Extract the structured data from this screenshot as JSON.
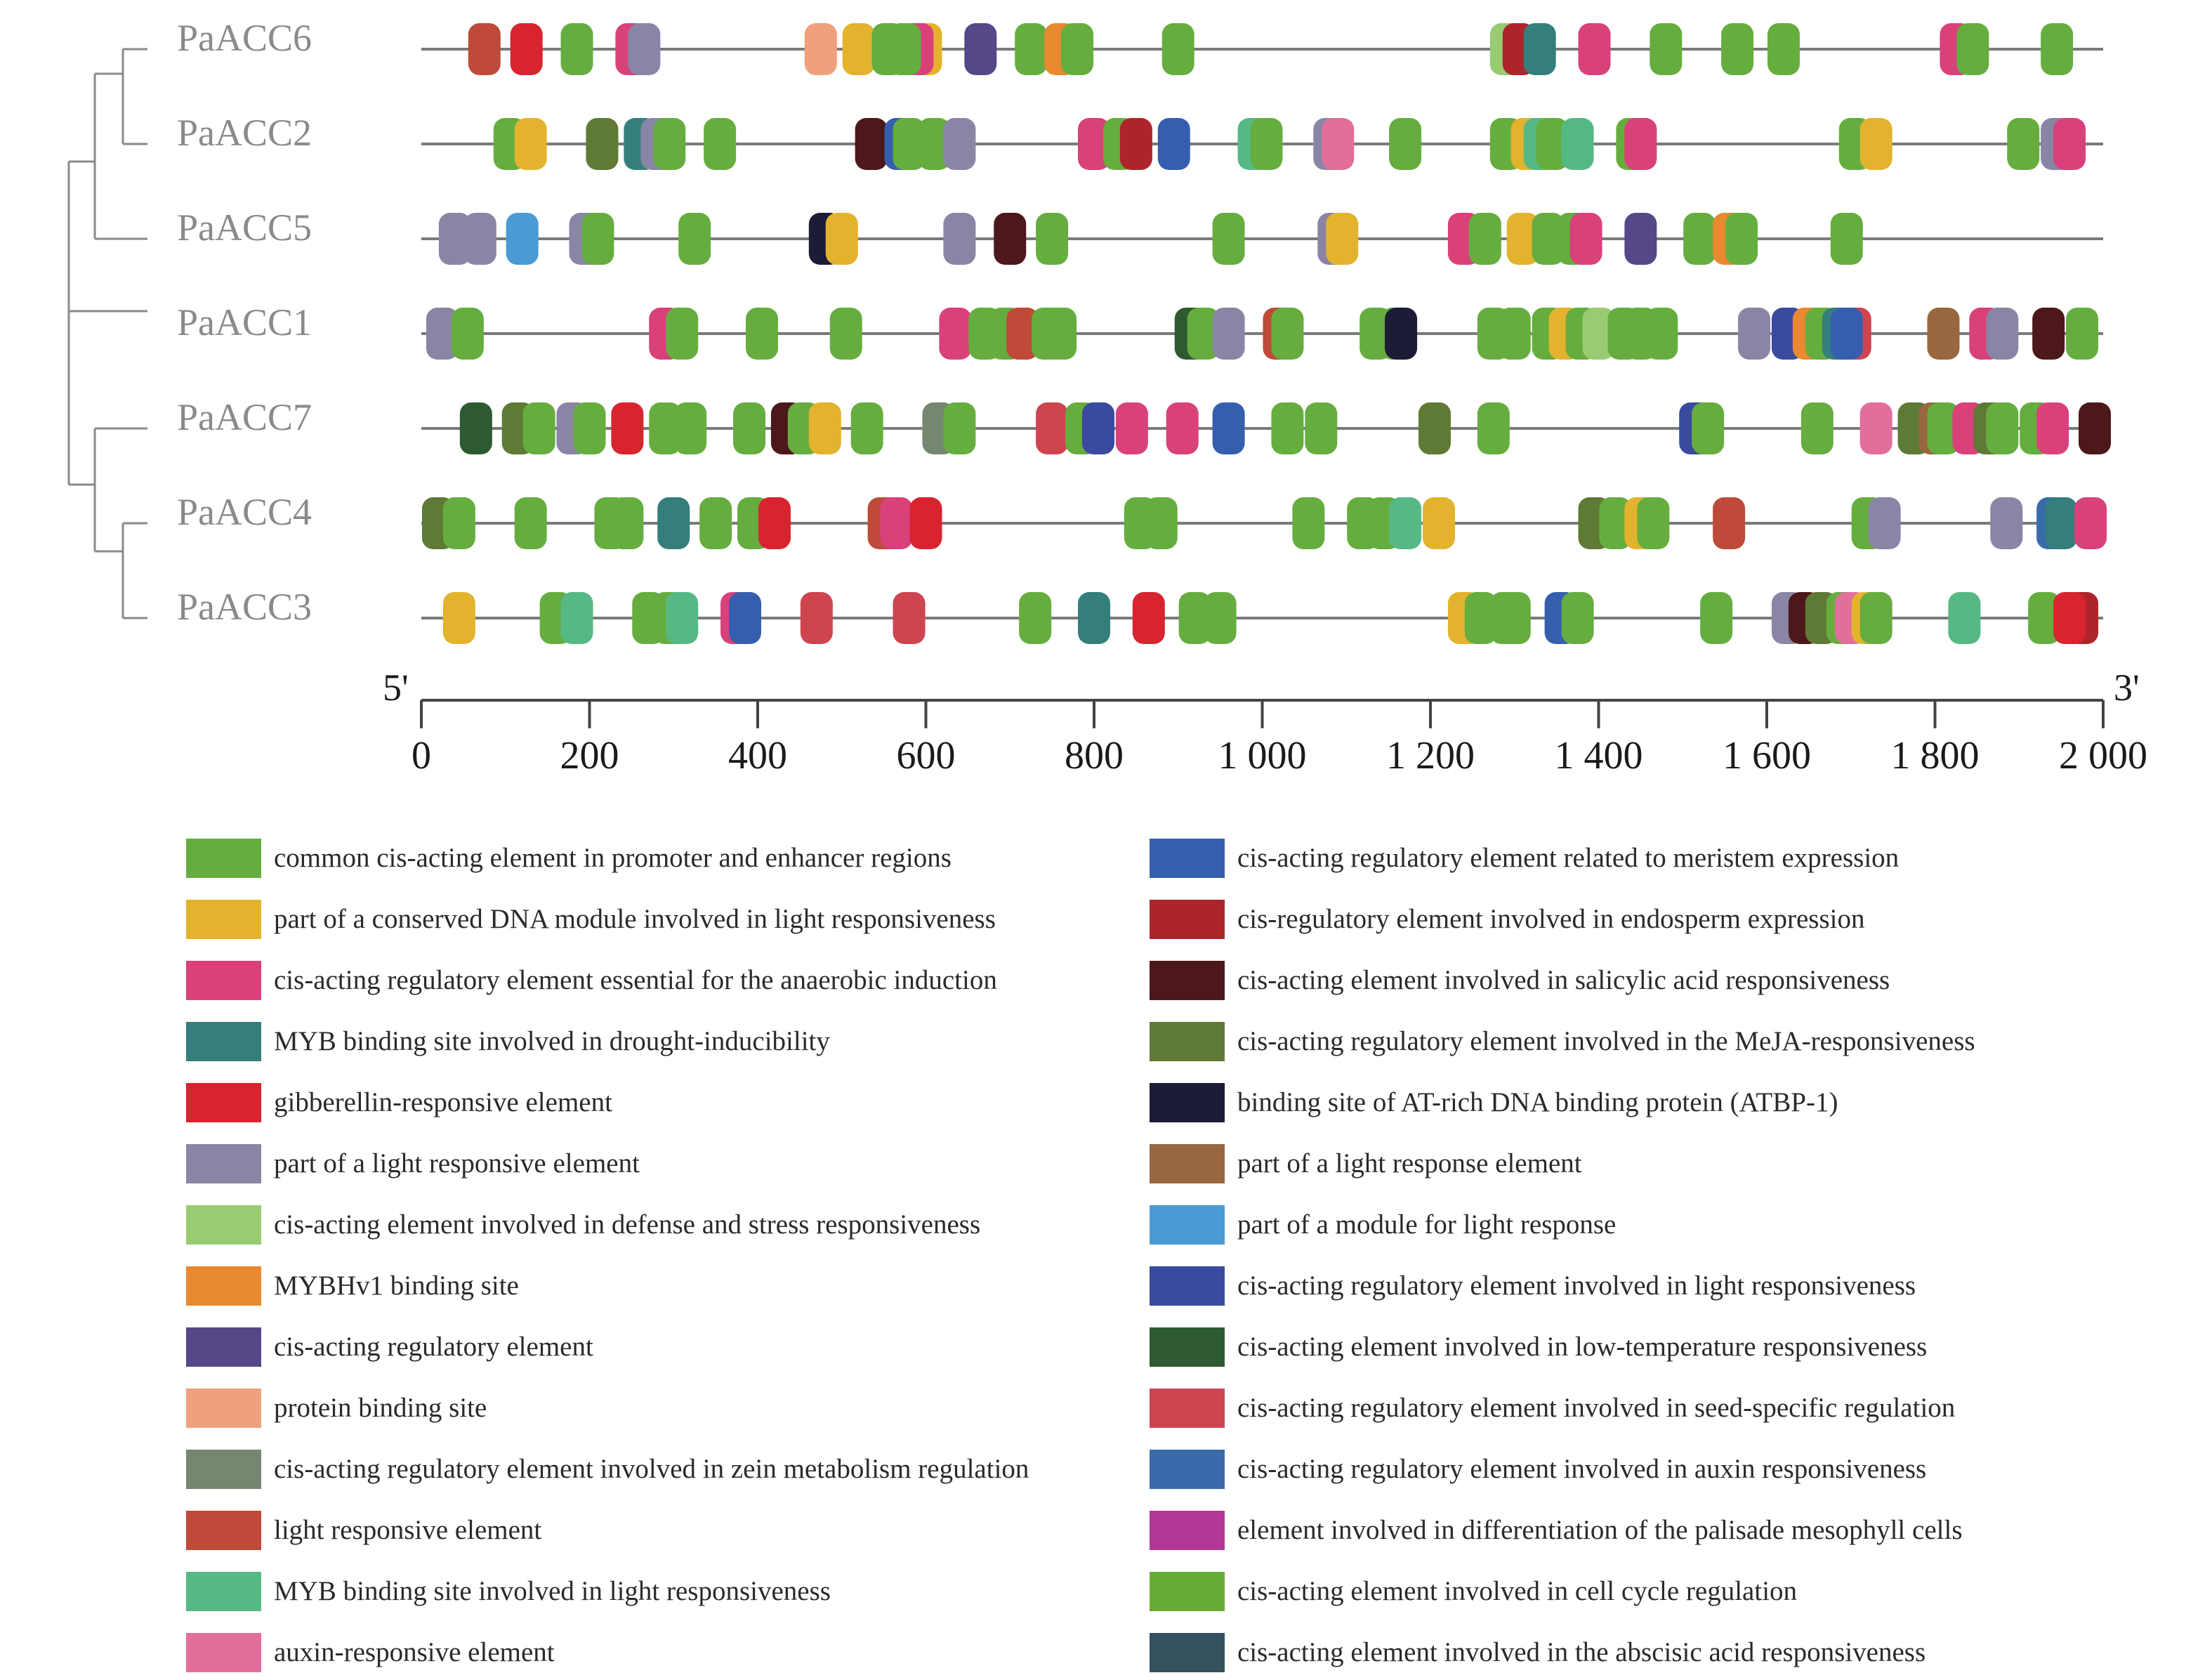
{
  "genes": [
    {
      "name": "PaACC6",
      "elements": [
        {
          "pos": 75,
          "c": 11
        },
        {
          "pos": 125,
          "c": 4
        },
        {
          "pos": 185,
          "c": 0
        },
        {
          "pos": 250,
          "c": 2
        },
        {
          "pos": 265,
          "c": 5
        },
        {
          "pos": 475,
          "c": 9
        },
        {
          "pos": 520,
          "c": 1
        },
        {
          "pos": 555,
          "c": 0
        },
        {
          "pos": 600,
          "c": 1
        },
        {
          "pos": 590,
          "c": 2
        },
        {
          "pos": 575,
          "c": 0
        },
        {
          "pos": 665,
          "c": 8
        },
        {
          "pos": 725,
          "c": 0
        },
        {
          "pos": 760,
          "c": 7
        },
        {
          "pos": 780,
          "c": 0
        },
        {
          "pos": 900,
          "c": 0
        },
        {
          "pos": 1290,
          "c": 6
        },
        {
          "pos": 1305,
          "c": 15
        },
        {
          "pos": 1330,
          "c": 3
        },
        {
          "pos": 1395,
          "c": 2
        },
        {
          "pos": 1480,
          "c": 0
        },
        {
          "pos": 1565,
          "c": 0
        },
        {
          "pos": 1620,
          "c": 0
        },
        {
          "pos": 1825,
          "c": 2
        },
        {
          "pos": 1845,
          "c": 0
        },
        {
          "pos": 1945,
          "c": 0
        }
      ]
    },
    {
      "name": "PaACC2",
      "elements": [
        {
          "pos": 105,
          "c": 0
        },
        {
          "pos": 130,
          "c": 1
        },
        {
          "pos": 215,
          "c": 17
        },
        {
          "pos": 260,
          "c": 3
        },
        {
          "pos": 280,
          "c": 5
        },
        {
          "pos": 295,
          "c": 0
        },
        {
          "pos": 355,
          "c": 0
        },
        {
          "pos": 535,
          "c": 16
        },
        {
          "pos": 570,
          "c": 14
        },
        {
          "pos": 580,
          "c": 0
        },
        {
          "pos": 610,
          "c": 0
        },
        {
          "pos": 640,
          "c": 5
        },
        {
          "pos": 800,
          "c": 2
        },
        {
          "pos": 830,
          "c": 0
        },
        {
          "pos": 850,
          "c": 15
        },
        {
          "pos": 895,
          "c": 14
        },
        {
          "pos": 990,
          "c": 12
        },
        {
          "pos": 1005,
          "c": 0
        },
        {
          "pos": 1080,
          "c": 5
        },
        {
          "pos": 1090,
          "c": 13
        },
        {
          "pos": 1170,
          "c": 0
        },
        {
          "pos": 1290,
          "c": 0
        },
        {
          "pos": 1315,
          "c": 1
        },
        {
          "pos": 1330,
          "c": 12
        },
        {
          "pos": 1345,
          "c": 0
        },
        {
          "pos": 1375,
          "c": 12
        },
        {
          "pos": 1440,
          "c": 0
        },
        {
          "pos": 1450,
          "c": 2
        },
        {
          "pos": 1705,
          "c": 0
        },
        {
          "pos": 1730,
          "c": 1
        },
        {
          "pos": 1905,
          "c": 0
        },
        {
          "pos": 1945,
          "c": 5
        },
        {
          "pos": 1960,
          "c": 2
        }
      ]
    },
    {
      "name": "PaACC5",
      "elements": [
        {
          "pos": 40,
          "c": 5
        },
        {
          "pos": 70,
          "c": 5
        },
        {
          "pos": 120,
          "c": 20
        },
        {
          "pos": 195,
          "c": 5
        },
        {
          "pos": 210,
          "c": 0
        },
        {
          "pos": 325,
          "c": 0
        },
        {
          "pos": 480,
          "c": 18
        },
        {
          "pos": 500,
          "c": 1
        },
        {
          "pos": 640,
          "c": 5
        },
        {
          "pos": 700,
          "c": 16
        },
        {
          "pos": 750,
          "c": 0
        },
        {
          "pos": 960,
          "c": 0
        },
        {
          "pos": 1085,
          "c": 5
        },
        {
          "pos": 1095,
          "c": 1
        },
        {
          "pos": 1240,
          "c": 2
        },
        {
          "pos": 1265,
          "c": 0
        },
        {
          "pos": 1310,
          "c": 1
        },
        {
          "pos": 1340,
          "c": 0
        },
        {
          "pos": 1370,
          "c": 0
        },
        {
          "pos": 1385,
          "c": 2
        },
        {
          "pos": 1450,
          "c": 8
        },
        {
          "pos": 1520,
          "c": 0
        },
        {
          "pos": 1555,
          "c": 7
        },
        {
          "pos": 1570,
          "c": 0
        },
        {
          "pos": 1695,
          "c": 0
        }
      ]
    },
    {
      "name": "PaACC1",
      "elements": [
        {
          "pos": 25,
          "c": 5
        },
        {
          "pos": 55,
          "c": 0
        },
        {
          "pos": 290,
          "c": 2
        },
        {
          "pos": 310,
          "c": 0
        },
        {
          "pos": 405,
          "c": 0
        },
        {
          "pos": 505,
          "c": 0
        },
        {
          "pos": 635,
          "c": 2
        },
        {
          "pos": 670,
          "c": 0
        },
        {
          "pos": 695,
          "c": 0
        },
        {
          "pos": 715,
          "c": 11
        },
        {
          "pos": 745,
          "c": 0
        },
        {
          "pos": 760,
          "c": 0
        },
        {
          "pos": 915,
          "c": 22
        },
        {
          "pos": 930,
          "c": 0
        },
        {
          "pos": 960,
          "c": 5
        },
        {
          "pos": 1020,
          "c": 11
        },
        {
          "pos": 1030,
          "c": 0
        },
        {
          "pos": 1135,
          "c": 0
        },
        {
          "pos": 1160,
          "c": 0
        },
        {
          "pos": 1165,
          "c": 18
        },
        {
          "pos": 1275,
          "c": 0
        },
        {
          "pos": 1300,
          "c": 0
        },
        {
          "pos": 1340,
          "c": 0
        },
        {
          "pos": 1360,
          "c": 1
        },
        {
          "pos": 1380,
          "c": 0
        },
        {
          "pos": 1400,
          "c": 6
        },
        {
          "pos": 1430,
          "c": 0
        },
        {
          "pos": 1450,
          "c": 0
        },
        {
          "pos": 1475,
          "c": 0
        },
        {
          "pos": 1585,
          "c": 5
        },
        {
          "pos": 1625,
          "c": 21
        },
        {
          "pos": 1650,
          "c": 7
        },
        {
          "pos": 1665,
          "c": 0
        },
        {
          "pos": 1685,
          "c": 3
        },
        {
          "pos": 1705,
          "c": 23
        },
        {
          "pos": 1695,
          "c": 14
        },
        {
          "pos": 1810,
          "c": 19
        },
        {
          "pos": 1860,
          "c": 2
        },
        {
          "pos": 1880,
          "c": 5
        },
        {
          "pos": 1935,
          "c": 16
        },
        {
          "pos": 1975,
          "c": 0
        }
      ]
    },
    {
      "name": "PaACC7",
      "elements": [
        {
          "pos": 65,
          "c": 22
        },
        {
          "pos": 115,
          "c": 17
        },
        {
          "pos": 140,
          "c": 0
        },
        {
          "pos": 180,
          "c": 5
        },
        {
          "pos": 200,
          "c": 0
        },
        {
          "pos": 245,
          "c": 4
        },
        {
          "pos": 290,
          "c": 0
        },
        {
          "pos": 320,
          "c": 0
        },
        {
          "pos": 390,
          "c": 0
        },
        {
          "pos": 435,
          "c": 16
        },
        {
          "pos": 455,
          "c": 0
        },
        {
          "pos": 480,
          "c": 1
        },
        {
          "pos": 530,
          "c": 0
        },
        {
          "pos": 615,
          "c": 10
        },
        {
          "pos": 640,
          "c": 0
        },
        {
          "pos": 750,
          "c": 23
        },
        {
          "pos": 785,
          "c": 0
        },
        {
          "pos": 805,
          "c": 21
        },
        {
          "pos": 845,
          "c": 2
        },
        {
          "pos": 905,
          "c": 2
        },
        {
          "pos": 960,
          "c": 14
        },
        {
          "pos": 1030,
          "c": 0
        },
        {
          "pos": 1070,
          "c": 0
        },
        {
          "pos": 1205,
          "c": 17
        },
        {
          "pos": 1275,
          "c": 0
        },
        {
          "pos": 1515,
          "c": 21
        },
        {
          "pos": 1530,
          "c": 0
        },
        {
          "pos": 1660,
          "c": 0
        },
        {
          "pos": 1730,
          "c": 13
        },
        {
          "pos": 1775,
          "c": 17
        },
        {
          "pos": 1800,
          "c": 19
        },
        {
          "pos": 1810,
          "c": 0
        },
        {
          "pos": 1840,
          "c": 2
        },
        {
          "pos": 1865,
          "c": 17
        },
        {
          "pos": 1880,
          "c": 0
        },
        {
          "pos": 1920,
          "c": 0
        },
        {
          "pos": 1940,
          "c": 2
        },
        {
          "pos": 1990,
          "c": 16
        }
      ]
    },
    {
      "name": "PaACC4",
      "elements": [
        {
          "pos": 20,
          "c": 17
        },
        {
          "pos": 45,
          "c": 0
        },
        {
          "pos": 130,
          "c": 0
        },
        {
          "pos": 225,
          "c": 0
        },
        {
          "pos": 245,
          "c": 0
        },
        {
          "pos": 300,
          "c": 3
        },
        {
          "pos": 350,
          "c": 0
        },
        {
          "pos": 395,
          "c": 0
        },
        {
          "pos": 420,
          "c": 4
        },
        {
          "pos": 550,
          "c": 11
        },
        {
          "pos": 565,
          "c": 2
        },
        {
          "pos": 600,
          "c": 4
        },
        {
          "pos": 855,
          "c": 0
        },
        {
          "pos": 880,
          "c": 0
        },
        {
          "pos": 1055,
          "c": 0
        },
        {
          "pos": 1120,
          "c": 0
        },
        {
          "pos": 1145,
          "c": 0
        },
        {
          "pos": 1170,
          "c": 12
        },
        {
          "pos": 1210,
          "c": 1
        },
        {
          "pos": 1395,
          "c": 17
        },
        {
          "pos": 1420,
          "c": 0
        },
        {
          "pos": 1450,
          "c": 1
        },
        {
          "pos": 1465,
          "c": 0
        },
        {
          "pos": 1555,
          "c": 11
        },
        {
          "pos": 1720,
          "c": 0
        },
        {
          "pos": 1740,
          "c": 5
        },
        {
          "pos": 1885,
          "c": 5
        },
        {
          "pos": 1940,
          "c": 24
        },
        {
          "pos": 1950,
          "c": 3
        },
        {
          "pos": 1985,
          "c": 2
        }
      ]
    },
    {
      "name": "PaACC3",
      "elements": [
        {
          "pos": 45,
          "c": 1
        },
        {
          "pos": 160,
          "c": 0
        },
        {
          "pos": 185,
          "c": 12
        },
        {
          "pos": 270,
          "c": 0
        },
        {
          "pos": 295,
          "c": 0
        },
        {
          "pos": 310,
          "c": 12
        },
        {
          "pos": 375,
          "c": 2
        },
        {
          "pos": 385,
          "c": 14
        },
        {
          "pos": 470,
          "c": 23
        },
        {
          "pos": 580,
          "c": 23
        },
        {
          "pos": 730,
          "c": 0
        },
        {
          "pos": 800,
          "c": 3
        },
        {
          "pos": 865,
          "c": 4
        },
        {
          "pos": 920,
          "c": 0
        },
        {
          "pos": 950,
          "c": 0
        },
        {
          "pos": 1240,
          "c": 1
        },
        {
          "pos": 1260,
          "c": 0
        },
        {
          "pos": 1290,
          "c": 0
        },
        {
          "pos": 1300,
          "c": 0
        },
        {
          "pos": 1355,
          "c": 14
        },
        {
          "pos": 1375,
          "c": 0
        },
        {
          "pos": 1540,
          "c": 0
        },
        {
          "pos": 1625,
          "c": 5
        },
        {
          "pos": 1645,
          "c": 16
        },
        {
          "pos": 1665,
          "c": 17
        },
        {
          "pos": 1690,
          "c": 0
        },
        {
          "pos": 1700,
          "c": 13
        },
        {
          "pos": 1720,
          "c": 1
        },
        {
          "pos": 1730,
          "c": 0
        },
        {
          "pos": 1835,
          "c": 12
        },
        {
          "pos": 1930,
          "c": 0
        },
        {
          "pos": 1975,
          "c": 15
        },
        {
          "pos": 1960,
          "c": 4
        }
      ]
    }
  ],
  "axis": {
    "five_prime": "5'",
    "three_prime": "3'",
    "min": 0,
    "max": 2000,
    "ticks": [
      {
        "value": 0,
        "label": "0"
      },
      {
        "value": 200,
        "label": "200"
      },
      {
        "value": 400,
        "label": "400"
      },
      {
        "value": 600,
        "label": "600"
      },
      {
        "value": 800,
        "label": "800"
      },
      {
        "value": 1000,
        "label": "1 000"
      },
      {
        "value": 1200,
        "label": "1 200"
      },
      {
        "value": 1400,
        "label": "1 400"
      },
      {
        "value": 1600,
        "label": "1 600"
      },
      {
        "value": 1800,
        "label": "1 800"
      },
      {
        "value": 2000,
        "label": "2 000"
      }
    ]
  },
  "legend": [
    {
      "color": "#66ad3f",
      "label": "common cis-acting element in promoter and enhancer regions"
    },
    {
      "color": "#e3b32e",
      "label": "part of a conserved DNA module involved in light responsiveness"
    },
    {
      "color": "#d9417b",
      "label": "cis-acting regulatory element essential for the anaerobic induction"
    },
    {
      "color": "#347f7b",
      "label": "MYB binding site involved in drought-inducibility"
    },
    {
      "color": "#d7242f",
      "label": "gibberellin-responsive element"
    },
    {
      "color": "#8985a5",
      "label": "part of a light responsive element"
    },
    {
      "color": "#99cc72",
      "label": "cis-acting element involved in defense and stress responsiveness"
    },
    {
      "color": "#e98930",
      "label": "MYBHv1 binding site"
    },
    {
      "color": "#564788",
      "label": "cis-acting regulatory element"
    },
    {
      "color": "#efa07c",
      "label": "protein binding site"
    },
    {
      "color": "#758671",
      "label": "cis-acting regulatory element involved in zein metabolism regulation"
    },
    {
      "color": "#bf4a39",
      "label": "light responsive element"
    },
    {
      "color": "#56b985",
      "label": "MYB binding site involved in light responsiveness"
    },
    {
      "color": "#e26f9b",
      "label": "auxin-responsive element"
    },
    {
      "color": "#355fae",
      "label": "cis-acting regulatory element related to meristem expression"
    },
    {
      "color": "#ad252b",
      "label": "cis-regulatory element involved in endosperm expression"
    },
    {
      "color": "#4d181b",
      "label": "cis-acting element involved in salicylic acid responsiveness"
    },
    {
      "color": "#5e7a35",
      "label": "cis-acting regulatory element involved in the MeJA-responsiveness"
    },
    {
      "color": "#1c1c36",
      "label": "binding site of AT-rich DNA binding protein (ATBP-1)"
    },
    {
      "color": "#98673f",
      "label": "part of a light response element"
    },
    {
      "color": "#4a9ad4",
      "label": "part of a module for light response"
    },
    {
      "color": "#3a4a9e",
      "label": "cis-acting regulatory element involved in light responsiveness"
    },
    {
      "color": "#2e5a32",
      "label": "cis-acting element involved in low-temperature responsiveness"
    },
    {
      "color": "#ce4550",
      "label": "cis-acting regulatory element involved in seed-specific regulation"
    },
    {
      "color": "#396baa",
      "label": "cis-acting regulatory element involved in auxin responsiveness"
    },
    {
      "color": "#b23796",
      "label": "element involved in differentiation of the palisade mesophyll cells"
    },
    {
      "color": "#67ab34",
      "label": "cis-acting element involved in cell cycle regulation"
    },
    {
      "color": "#34515f",
      "label": "cis-acting element involved in the abscisic acid responsiveness"
    }
  ],
  "colors": {
    "tree": "#8a8a8a",
    "gene_line": "#7a7a7a",
    "axis": "#444444"
  }
}
